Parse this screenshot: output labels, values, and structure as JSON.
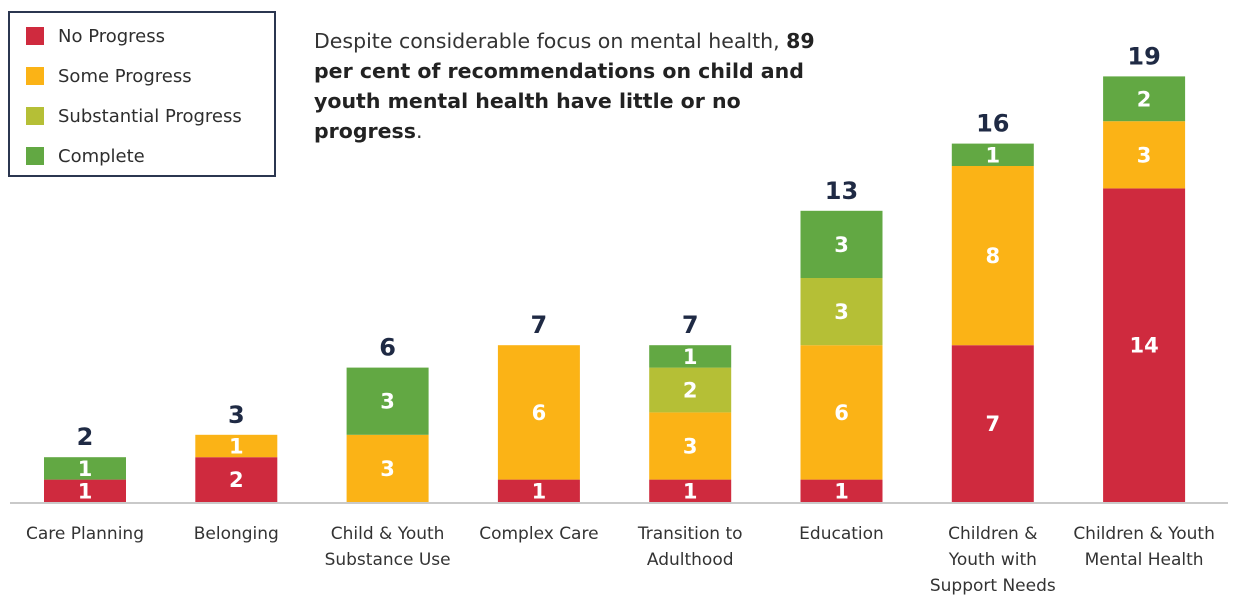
{
  "legend": {
    "items": [
      {
        "label": "No Progress",
        "color": "#cf2a3e"
      },
      {
        "label": "Some Progress",
        "color": "#fbb316"
      },
      {
        "label": "Substantial Progress",
        "color": "#b5bf36"
      },
      {
        "label": "Complete",
        "color": "#62a843"
      }
    ]
  },
  "annotation": {
    "text_before": "Despite considerable focus on mental health, ",
    "text_bold": "89 per cent of recommendations on child and youth mental health have little or no progress",
    "text_after": "."
  },
  "chart_data": {
    "type": "bar",
    "stacked": true,
    "categories": [
      "Care Planning",
      "Belonging",
      "Child & Youth Substance Use",
      "Complex Care",
      "Transition to Adulthood",
      "Education",
      "Children & Youth with Support Needs",
      "Children & Youth Mental Health"
    ],
    "series": [
      {
        "name": "No Progress",
        "color": "#cf2a3e",
        "values": [
          1,
          2,
          0,
          1,
          1,
          1,
          7,
          14
        ]
      },
      {
        "name": "Some Progress",
        "color": "#fbb316",
        "values": [
          0,
          1,
          3,
          6,
          3,
          6,
          8,
          3
        ]
      },
      {
        "name": "Substantial Progress",
        "color": "#b5bf36",
        "values": [
          0,
          0,
          0,
          0,
          2,
          3,
          0,
          0
        ]
      },
      {
        "name": "Complete",
        "color": "#62a843",
        "values": [
          1,
          0,
          3,
          0,
          1,
          3,
          1,
          2
        ]
      }
    ],
    "totals": [
      2,
      3,
      6,
      7,
      7,
      13,
      16,
      19
    ],
    "ylim": [
      0,
      19
    ],
    "grid": false,
    "legend_position": "top-left"
  }
}
